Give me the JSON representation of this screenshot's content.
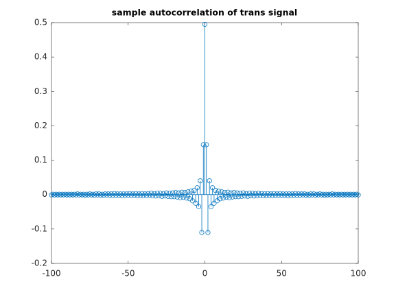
{
  "chart_data": {
    "type": "stem",
    "title": "sample autocorrelation of trans signal",
    "color": "#0072bd",
    "xlim": [
      -100,
      100
    ],
    "ylim": [
      -0.2,
      0.5
    ],
    "xticks": [
      -100,
      -50,
      0,
      50,
      100
    ],
    "yticks": [
      -0.2,
      -0.1,
      0,
      0.1,
      0.2,
      0.3,
      0.4,
      0.5
    ],
    "x": [
      -100,
      -99,
      -98,
      -97,
      -96,
      -95,
      -94,
      -93,
      -92,
      -91,
      -90,
      -89,
      -88,
      -87,
      -86,
      -85,
      -84,
      -83,
      -82,
      -81,
      -80,
      -79,
      -78,
      -77,
      -76,
      -75,
      -74,
      -73,
      -72,
      -71,
      -70,
      -69,
      -68,
      -67,
      -66,
      -65,
      -64,
      -63,
      -62,
      -61,
      -60,
      -59,
      -58,
      -57,
      -56,
      -55,
      -54,
      -53,
      -52,
      -51,
      -50,
      -49,
      -48,
      -47,
      -46,
      -45,
      -44,
      -43,
      -42,
      -41,
      -40,
      -39,
      -38,
      -37,
      -36,
      -35,
      -34,
      -33,
      -32,
      -31,
      -30,
      -29,
      -28,
      -27,
      -26,
      -25,
      -24,
      -23,
      -22,
      -21,
      -20,
      -19,
      -18,
      -17,
      -16,
      -15,
      -14,
      -13,
      -12,
      -11,
      -10,
      -9,
      -8,
      -7,
      -6,
      -5,
      -4,
      -3,
      -2,
      -1,
      0,
      1,
      2,
      3,
      4,
      5,
      6,
      7,
      8,
      9,
      10,
      11,
      12,
      13,
      14,
      15,
      16,
      17,
      18,
      19,
      20,
      21,
      22,
      23,
      24,
      25,
      26,
      27,
      28,
      29,
      30,
      31,
      32,
      33,
      34,
      35,
      36,
      37,
      38,
      39,
      40,
      41,
      42,
      43,
      44,
      45,
      46,
      47,
      48,
      49,
      50,
      51,
      52,
      53,
      54,
      55,
      56,
      57,
      58,
      59,
      60,
      61,
      62,
      63,
      64,
      65,
      66,
      67,
      68,
      69,
      70,
      71,
      72,
      73,
      74,
      75,
      76,
      77,
      78,
      79,
      80,
      81,
      82,
      83,
      84,
      85,
      86,
      87,
      88,
      89,
      90,
      91,
      92,
      93,
      94,
      95,
      96,
      97,
      98,
      99,
      100
    ],
    "values": [
      -0.001,
      0.001,
      -0.001,
      0.001,
      -0.001,
      0.001,
      -0.001,
      0.001,
      -0.001,
      0.001,
      -0.001,
      0.001,
      -0.001,
      0.001,
      -0.001,
      0.001,
      -0.001,
      0.002,
      -0.001,
      0.001,
      -0.001,
      0.001,
      -0.002,
      0.001,
      -0.001,
      0.002,
      -0.001,
      0.001,
      -0.002,
      0.002,
      -0.001,
      0.002,
      -0.002,
      0.001,
      -0.002,
      0.002,
      -0.001,
      0.002,
      -0.002,
      0.002,
      -0.002,
      0.003,
      -0.002,
      0.002,
      -0.002,
      0.002,
      -0.003,
      0.002,
      -0.002,
      0.002,
      -0.002,
      0.003,
      -0.002,
      0.002,
      -0.002,
      0.003,
      -0.003,
      0.002,
      -0.002,
      0.003,
      -0.003,
      0.002,
      -0.003,
      0.003,
      -0.002,
      0.004,
      -0.003,
      0.003,
      -0.004,
      0.004,
      -0.003,
      0.004,
      -0.005,
      0.003,
      -0.004,
      0.005,
      -0.005,
      0.004,
      -0.006,
      0.005,
      -0.006,
      0.006,
      -0.007,
      0.005,
      -0.009,
      0.007,
      -0.008,
      0.006,
      -0.01,
      0.008,
      -0.012,
      0.01,
      -0.018,
      0.012,
      -0.025,
      0.02,
      -0.035,
      0.04,
      -0.11,
      0.145,
      0.495,
      0.145,
      -0.11,
      0.04,
      -0.035,
      0.02,
      -0.025,
      0.012,
      -0.018,
      0.01,
      -0.012,
      0.008,
      -0.01,
      0.006,
      -0.008,
      0.007,
      -0.009,
      0.005,
      -0.007,
      0.006,
      -0.006,
      0.005,
      -0.006,
      0.004,
      -0.005,
      0.005,
      -0.004,
      0.003,
      -0.005,
      0.004,
      -0.003,
      0.004,
      -0.004,
      0.003,
      -0.003,
      0.004,
      -0.002,
      0.003,
      -0.003,
      0.002,
      -0.003,
      0.003,
      -0.002,
      0.002,
      -0.003,
      0.003,
      -0.002,
      0.002,
      -0.002,
      0.003,
      -0.002,
      0.002,
      -0.002,
      0.002,
      -0.003,
      0.002,
      -0.002,
      0.002,
      -0.002,
      0.003,
      -0.002,
      0.002,
      -0.002,
      0.002,
      -0.001,
      0.002,
      -0.002,
      0.001,
      -0.002,
      0.002,
      -0.001,
      0.002,
      -0.002,
      0.001,
      -0.001,
      0.002,
      -0.001,
      0.001,
      -0.002,
      0.001,
      -0.001,
      0.001,
      -0.001,
      0.002,
      -0.001,
      0.001,
      -0.001,
      0.001,
      -0.001,
      0.001,
      -0.001,
      0.001,
      -0.001,
      0.001,
      -0.001,
      0.001,
      -0.001,
      0.001,
      -0.001,
      0.001,
      -0.001
    ]
  }
}
